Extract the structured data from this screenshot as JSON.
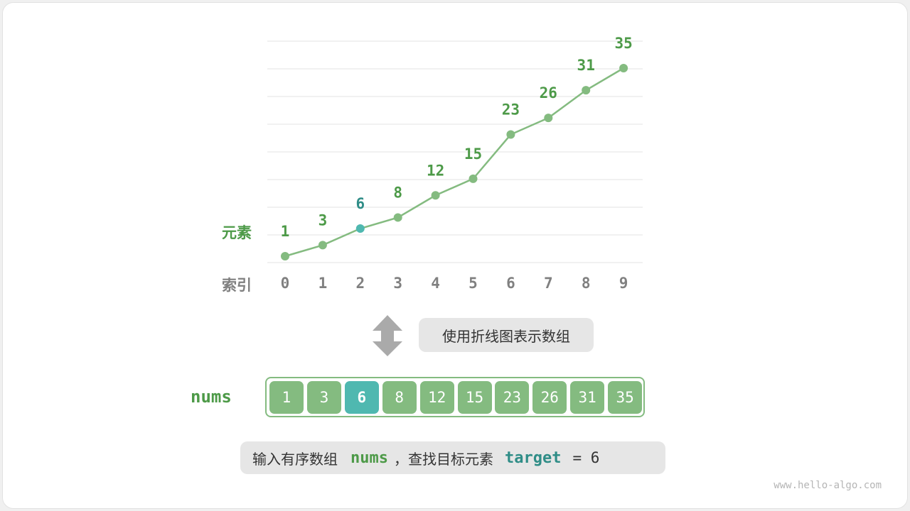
{
  "chart": {
    "y_label": "元素",
    "x_label": "索引",
    "indices": [
      "0",
      "1",
      "2",
      "3",
      "4",
      "5",
      "6",
      "7",
      "8",
      "9"
    ],
    "values": [
      1,
      3,
      6,
      8,
      12,
      15,
      23,
      26,
      31,
      35
    ],
    "highlight_index": 2,
    "colors": {
      "line": "#84bb80",
      "label": "#4d9a48",
      "highlight": "#4fb8b0",
      "highlight_label": "#2f8d87",
      "axis_text": "#808080",
      "grid": "#e3e3e3"
    }
  },
  "arrow_caption": "使用折线图表示数组",
  "array": {
    "name": "nums",
    "values": [
      "1",
      "3",
      "6",
      "8",
      "12",
      "15",
      "23",
      "26",
      "31",
      "35"
    ],
    "highlight_index": 2
  },
  "caption": {
    "prefix": "输入有序数组",
    "nums": "nums",
    "middle": "，查找目标元素",
    "target": "target",
    "eq": "= 6"
  },
  "watermark": "www.hello-algo.com"
}
